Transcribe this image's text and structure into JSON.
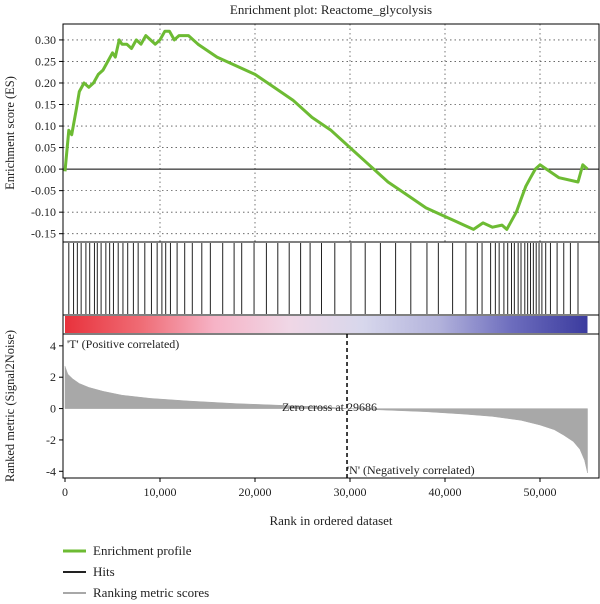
{
  "chart_data": {
    "type": "line",
    "title": "Enrichment plot: Reactome_glycolysis",
    "xlabel": "Rank in ordered dataset",
    "xlim": [
      0,
      56000
    ],
    "x_ticks": [
      0,
      10000,
      20000,
      30000,
      40000,
      50000
    ],
    "x_tick_labels": [
      "0",
      "10,000",
      "20,000",
      "30,000",
      "40,000",
      "50,000"
    ],
    "es_panel": {
      "ylabel": "Enrichment score (ES)",
      "ylim": [
        -0.16,
        0.33
      ],
      "y_ticks": [
        -0.15,
        -0.1,
        -0.05,
        0.0,
        0.05,
        0.1,
        0.15,
        0.2,
        0.25,
        0.3
      ],
      "y_tick_labels": [
        "-0.15",
        "-0.10",
        "-0.05",
        "0.00",
        "0.05",
        "0.10",
        "0.15",
        "0.20",
        "0.25",
        "0.30"
      ],
      "grid": "dotted",
      "series": [
        {
          "name": "Enrichment profile",
          "x": [
            0,
            400,
            700,
            1200,
            1500,
            2000,
            2500,
            3000,
            3500,
            4000,
            4500,
            5000,
            5300,
            5700,
            6000,
            6500,
            7000,
            7500,
            8000,
            8500,
            9000,
            9500,
            10000,
            10500,
            11000,
            11500,
            12000,
            12500,
            13000,
            14000,
            16000,
            18000,
            20000,
            22000,
            24000,
            26000,
            28000,
            30000,
            32000,
            34000,
            36000,
            38000,
            40000,
            41000,
            42000,
            43000,
            44000,
            45000,
            46000,
            46500,
            47000,
            47500,
            48000,
            48500,
            49000,
            49500,
            50000,
            52000,
            54000,
            54500,
            55000
          ],
          "y": [
            -0.005,
            0.09,
            0.08,
            0.14,
            0.18,
            0.2,
            0.19,
            0.2,
            0.22,
            0.23,
            0.25,
            0.27,
            0.26,
            0.3,
            0.29,
            0.29,
            0.28,
            0.3,
            0.29,
            0.31,
            0.3,
            0.29,
            0.3,
            0.32,
            0.32,
            0.3,
            0.31,
            0.31,
            0.31,
            0.29,
            0.26,
            0.24,
            0.22,
            0.19,
            0.16,
            0.12,
            0.09,
            0.05,
            0.01,
            -0.03,
            -0.06,
            -0.09,
            -0.11,
            -0.12,
            -0.13,
            -0.14,
            -0.125,
            -0.135,
            -0.13,
            -0.14,
            -0.12,
            -0.1,
            -0.07,
            -0.04,
            -0.02,
            0.0,
            0.01,
            -0.02,
            -0.03,
            0.01,
            0.0
          ],
          "color": "#6dbb33"
        }
      ]
    },
    "hits_panel": {
      "series_name": "Hits",
      "color": "#222222",
      "hit_ranks": [
        400,
        900,
        1300,
        1700,
        2200,
        2600,
        3100,
        3400,
        3800,
        4300,
        4700,
        5100,
        5600,
        6100,
        6600,
        7200,
        7700,
        8400,
        9100,
        9700,
        10200,
        10600,
        11100,
        11800,
        12600,
        13400,
        14400,
        15300,
        16600,
        17800,
        18600,
        19900,
        21200,
        22400,
        23600,
        24800,
        25800,
        27000,
        28400,
        30100,
        31600,
        33200,
        34800,
        36400,
        38100,
        39300,
        40800,
        42200,
        43400,
        43900,
        44800,
        45300,
        45700,
        46200,
        46600,
        47000,
        47300,
        47700,
        48000,
        48400,
        48700,
        49000,
        49300,
        49600,
        49900,
        50200,
        50600,
        51100,
        51800,
        52500,
        53200,
        54000
      ]
    },
    "heat_bar": {
      "colors": [
        "#e8323c",
        "#ef6b74",
        "#f6b3c6",
        "#f0d7e6",
        "#d7d7ec",
        "#b3b3dc",
        "#6c6cbd",
        "#3b3b9e"
      ]
    },
    "metric_panel": {
      "series_name": "Ranking metric scores",
      "ylabel": "Ranked metric (Signal2Noise)",
      "ylim": [
        -4.3,
        4.5
      ],
      "y_ticks": [
        -4,
        -2,
        0,
        2,
        4
      ],
      "y_tick_labels": [
        "-4",
        "-2",
        "0",
        "2",
        "4"
      ],
      "color": "#a8a8a8",
      "x": [
        0,
        300,
        800,
        1500,
        2500,
        4000,
        6000,
        9000,
        13000,
        18000,
        23000,
        28000,
        29686,
        33000,
        38000,
        42000,
        45000,
        48000,
        50000,
        51500,
        52500,
        53500,
        54200,
        54700,
        55000
      ],
      "y": [
        2.7,
        2.2,
        1.9,
        1.6,
        1.35,
        1.1,
        0.85,
        0.65,
        0.48,
        0.32,
        0.2,
        0.08,
        0.0,
        -0.08,
        -0.2,
        -0.35,
        -0.5,
        -0.75,
        -1.05,
        -1.35,
        -1.7,
        -2.1,
        -2.6,
        -3.3,
        -4.1
      ],
      "zero_cross": 29686,
      "zero_cross_label": "Zero cross at 29686",
      "positive_label": "'T' (Positive correlated)",
      "negative_label": "'N' (Negatively correlated)",
      "positive_color": "#e8323c",
      "negative_color": "#3b3bb5"
    },
    "legend": {
      "placement": "bottom-left",
      "items": [
        {
          "label": "Enrichment profile",
          "color": "#6dbb33"
        },
        {
          "label": "Hits",
          "color": "#222222"
        },
        {
          "label": "Ranking metric scores",
          "color": "#a8a8a8"
        }
      ]
    }
  }
}
